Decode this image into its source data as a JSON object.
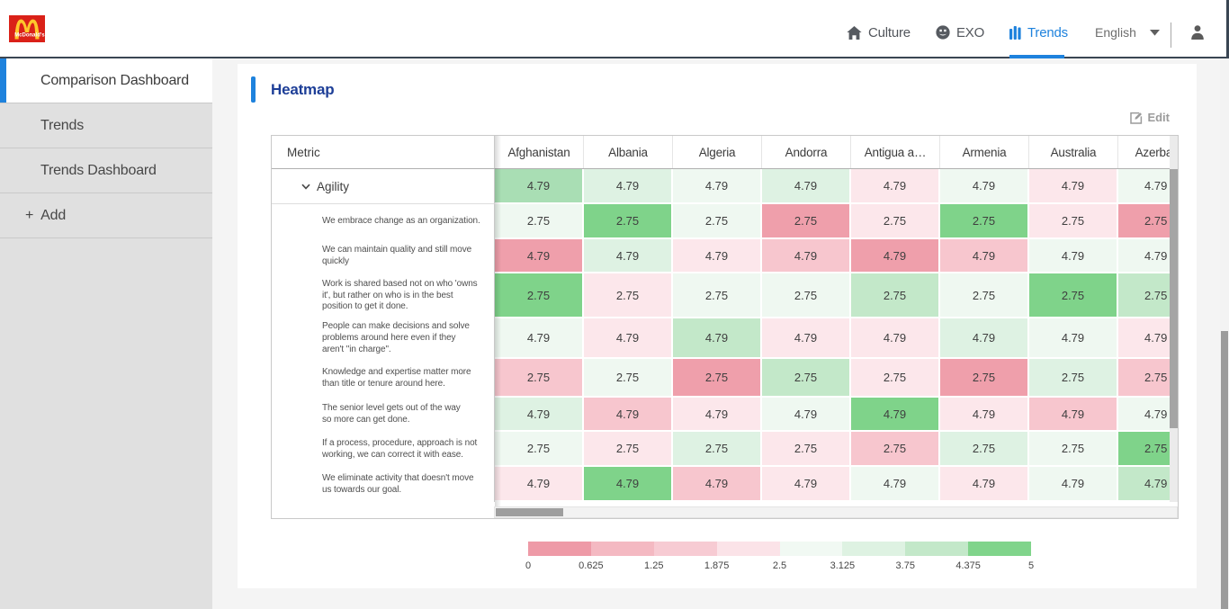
{
  "navbar": {
    "brand": "McDonald's",
    "items": [
      {
        "id": "culture",
        "icon": "home-icon",
        "label": "Culture"
      },
      {
        "id": "exo",
        "icon": "smiley-icon",
        "label": "EXO"
      },
      {
        "id": "trends",
        "icon": "bar-chart-icon",
        "label": "Trends",
        "active": true
      }
    ],
    "language": {
      "label": "English"
    }
  },
  "sidebar": {
    "items": [
      {
        "label": "Comparison Dashboard",
        "selected": true
      },
      {
        "label": "Trends"
      },
      {
        "label": "Trends Dashboard"
      },
      {
        "label": "Add",
        "icon": "plus-icon",
        "plus": "+"
      }
    ]
  },
  "panel": {
    "title": "Heatmap",
    "edit_label": "Edit"
  },
  "heatmap": {
    "metric_header": "Metric",
    "columns": [
      "Afghanistan",
      "Albania",
      "Algeria",
      "Andorra",
      "Antigua a…",
      "Armenia",
      "Australia",
      "Azerbaijan"
    ],
    "palette": {
      "r4": "#ef9fab",
      "r2": "#f7c6ce",
      "r1": "#fce7eb",
      "g0": "#eff8f1",
      "g1": "#def2e3",
      "g2": "#c3e8c9",
      "g3": "#a9deb4",
      "g4": "#7fd38a"
    },
    "group_row": {
      "label": "Agility",
      "value": "4.79",
      "colors": [
        "g3",
        "g1",
        "g0",
        "g1",
        "r1",
        "g0",
        "r1",
        "g0"
      ]
    },
    "rows": [
      {
        "label": "We embrace change as an organization.",
        "value": "2.75",
        "colors": [
          "g0",
          "g4",
          "g0",
          "r4",
          "r1",
          "g4",
          "r1",
          "r4"
        ]
      },
      {
        "label": "We can maintain quality and still move\nquickly",
        "value": "4.79",
        "colors": [
          "r4",
          "g1",
          "r1",
          "r2",
          "r4",
          "r2",
          "g0",
          "g0"
        ]
      },
      {
        "label": "Work is shared based not on who 'owns\nit', but rather on who is in the best\nposition to get it done.",
        "value": "2.75",
        "colors": [
          "g4",
          "r1",
          "g0",
          "g0",
          "g2",
          "g0",
          "g4",
          "g2"
        ]
      },
      {
        "label": "People can make decisions and solve\nproblems around here even if they\naren't \"in charge\".",
        "value": "4.79",
        "colors": [
          "g0",
          "r1",
          "g2",
          "r1",
          "r1",
          "g1",
          "g0",
          "r1"
        ]
      },
      {
        "label": "Knowledge and expertise matter more\nthan title or tenure around here.",
        "value": "2.75",
        "colors": [
          "r2",
          "g0",
          "r4",
          "g2",
          "r1",
          "r4",
          "g1",
          "r2"
        ]
      },
      {
        "label": "The senior level gets out of the way\nso more can get done.",
        "value": "4.79",
        "colors": [
          "g1",
          "r2",
          "r1",
          "g0",
          "g4",
          "r1",
          "r2",
          "g0"
        ]
      },
      {
        "label": "If a process, procedure, approach is not\nworking, we can correct it with ease.",
        "value": "2.75",
        "colors": [
          "g0",
          "r1",
          "g1",
          "r1",
          "r2",
          "g1",
          "g0",
          "g4"
        ]
      },
      {
        "label": "We eliminate activity that doesn't move\nus towards our goal.",
        "value": "4.79",
        "colors": [
          "r1",
          "g4",
          "r2",
          "r1",
          "g0",
          "r1",
          "g0",
          "g2"
        ]
      }
    ]
  },
  "legend": {
    "colors": [
      "#ee9aa7",
      "#f4b9c2",
      "#f7cbd3",
      "#fbe3e8",
      "#f1f9f3",
      "#def2e2",
      "#c3e8c9",
      "#80d48b"
    ],
    "ticks": [
      "0",
      "0.625",
      "1.25",
      "1.875",
      "2.5",
      "3.125",
      "3.75",
      "4.375",
      "5"
    ]
  },
  "colors": {
    "accent_blue": "#1e82dd",
    "title_navy": "#1d3e97",
    "navbar_border": "#3a4653",
    "brand_red": "#da2118",
    "brand_gold": "#ffc72c"
  }
}
